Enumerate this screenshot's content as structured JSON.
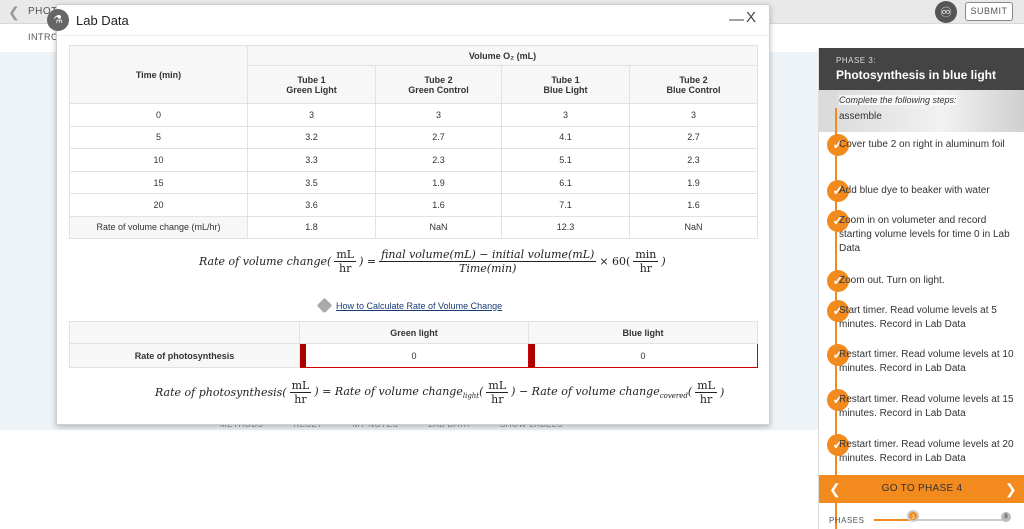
{
  "app": {
    "title": "PHOT",
    "intro_label": "INTRO",
    "submit_label": "SUBMIT",
    "toolbar": [
      "METHODS",
      "RESET",
      "MY NOTES",
      "LAB DATA",
      "SHOW LABELS"
    ]
  },
  "modal": {
    "title": "Lab Data",
    "minimize_label": "—",
    "close_label": "X",
    "volume_header": "Volume O₂ (mL)",
    "columns": [
      {
        "line1": "Time (min)",
        "line2": ""
      },
      {
        "line1": "Tube 1",
        "line2": "Green Light"
      },
      {
        "line1": "Tube 2",
        "line2": "Green Control"
      },
      {
        "line1": "Tube 1",
        "line2": "Blue Light"
      },
      {
        "line1": "Tube 2",
        "line2": "Blue Control"
      }
    ],
    "rows": [
      [
        "0",
        "3",
        "3",
        "3",
        "3"
      ],
      [
        "5",
        "3.2",
        "2.7",
        "4.1",
        "2.7"
      ],
      [
        "10",
        "3.3",
        "2.3",
        "5.1",
        "2.3"
      ],
      [
        "15",
        "3.5",
        "1.9",
        "6.1",
        "1.9"
      ],
      [
        "20",
        "3.6",
        "1.6",
        "7.1",
        "1.6"
      ]
    ],
    "rate_row": [
      "Rate of volume change (mL/hr)",
      "1.8",
      "NaN",
      "12.3",
      "NaN"
    ],
    "formula1": {
      "lhs": "Rate of volume change(",
      "unit_num": "mL",
      "unit_den": "hr",
      "eq": ") =",
      "numerator": "final volume(mL) − initial volume(mL)",
      "denominator": "Time(min)",
      "times": "× 60(",
      "min_num": "min",
      "min_den": "hr",
      "close": ")"
    },
    "howto_link": "How to Calculate Rate of Volume Change",
    "photo_table": {
      "headers": [
        "",
        "Green light",
        "Blue light"
      ],
      "row_label": "Rate of photosynthesis",
      "green_value": "0",
      "blue_value": "0"
    },
    "formula2": {
      "lhs": "Rate of photosynthesis(",
      "unit_num": "mL",
      "unit_den": "hr",
      "eq": ") = Rate of volume change",
      "sub1": "light",
      "open2": "(",
      "minus": ") − Rate of volume change",
      "sub2": "covered",
      "open3": "(",
      "close": ")"
    }
  },
  "panel": {
    "phase_label": "PHASE 3:",
    "phase_title": "Photosynthesis in blue light",
    "complete_label": "Complete the following steps:",
    "partial_step": "assemble",
    "steps": [
      "Cover tube 2 on right in aluminum foil",
      "Add blue dye to beaker with water",
      "Zoom in on volumeter and record starting volume levels for time 0 in Lab Data",
      "Zoom out. Turn on light.",
      "Start timer. Read volume levels at 5 minutes. Record in Lab Data",
      "Restart timer. Read volume levels at 10 minutes. Record in Lab Data",
      "Restart timer. Read volume levels at 15 minutes. Record in Lab Data",
      "Restart timer. Read volume levels at 20 minutes. Record in Lab Data"
    ],
    "goto_label": "GO TO PHASE 4",
    "phases_label": "PHASES",
    "current_phase": "3",
    "last_phase": "8"
  },
  "colors": {
    "accent": "#f28a1e",
    "header": "#444444",
    "link": "#1a3c75",
    "input_border": "#cc0000"
  }
}
